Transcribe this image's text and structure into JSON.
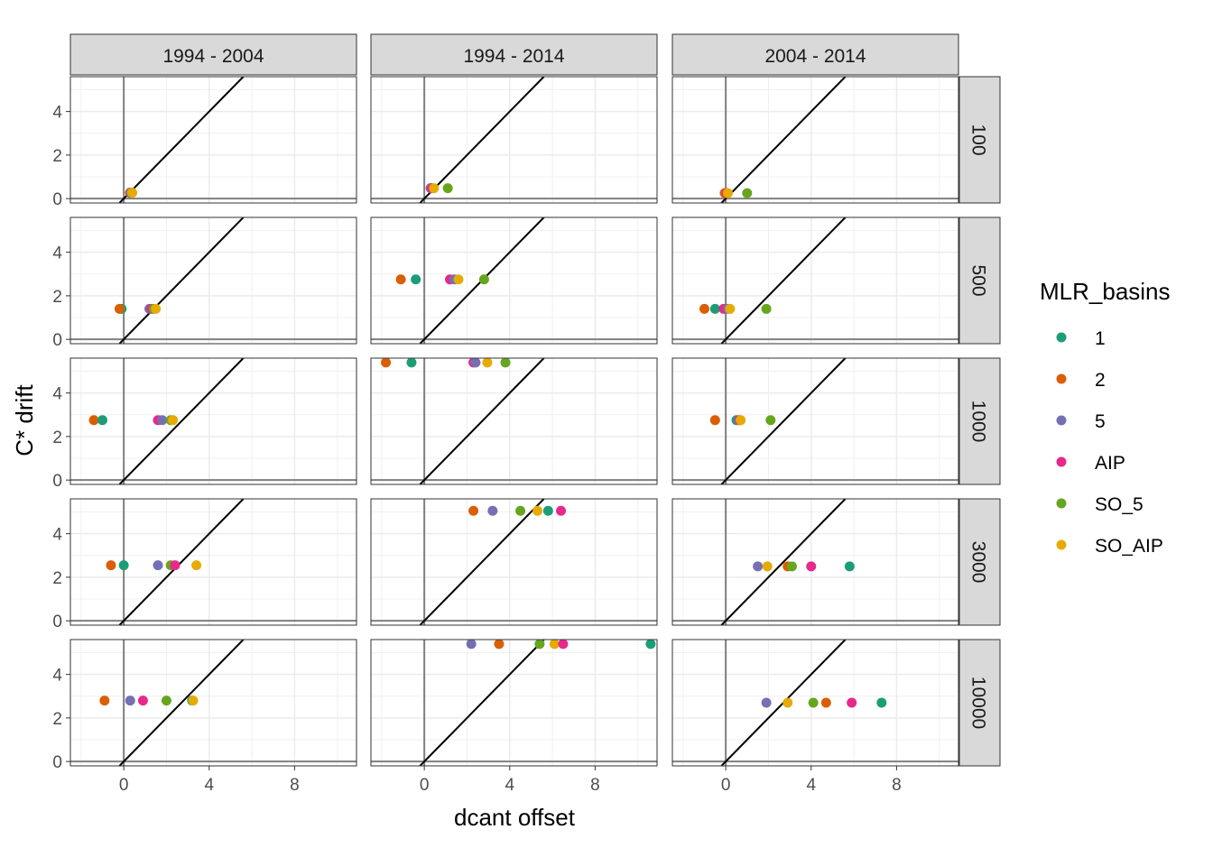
{
  "chart_data": {
    "type": "scatter",
    "xlabel": "dcant offset",
    "ylabel": "C* drift",
    "xlim": [
      -2.5,
      10.9
    ],
    "ylim": [
      -0.2,
      5.6
    ],
    "x_ticks": [
      0,
      4,
      8
    ],
    "y_ticks": [
      0,
      2,
      4
    ],
    "grid": true,
    "legend_position": "right",
    "legend_title": "MLR_basins",
    "reference_lines": [
      "x = 0",
      "y = 0",
      "y = x"
    ],
    "col_facets": [
      "1994 - 2004",
      "1994 - 2014",
      "2004 - 2014"
    ],
    "row_facets": [
      "100",
      "500",
      "1000",
      "3000",
      "10000"
    ],
    "series": [
      {
        "name": "1",
        "color": "#1B9E77"
      },
      {
        "name": "2",
        "color": "#D95F02"
      },
      {
        "name": "5",
        "color": "#7570B3"
      },
      {
        "name": "AIP",
        "color": "#E7298A"
      },
      {
        "name": "SO_5",
        "color": "#66A61E"
      },
      {
        "name": "SO_AIP",
        "color": "#E6AB02"
      }
    ],
    "panels": [
      {
        "row": "100",
        "col": "1994 - 2004",
        "y": 0.27,
        "points": [
          {
            "series": "2",
            "x": 0.3
          },
          {
            "series": "1",
            "x": 0.3
          },
          {
            "series": "5",
            "x": 0.3
          },
          {
            "series": "AIP",
            "x": 0.3
          },
          {
            "series": "SO_5",
            "x": 0.35
          },
          {
            "series": "SO_AIP",
            "x": 0.4
          }
        ]
      },
      {
        "row": "100",
        "col": "1994 - 2014",
        "y": 0.48,
        "points": [
          {
            "series": "2",
            "x": 0.3
          },
          {
            "series": "1",
            "x": 0.3
          },
          {
            "series": "5",
            "x": 0.3
          },
          {
            "series": "AIP",
            "x": 0.35
          },
          {
            "series": "SO_5",
            "x": 1.1
          },
          {
            "series": "SO_AIP",
            "x": 0.45
          }
        ]
      },
      {
        "row": "100",
        "col": "2004 - 2014",
        "y": 0.25,
        "points": [
          {
            "series": "2",
            "x": -0.05
          },
          {
            "series": "1",
            "x": 0.05
          },
          {
            "series": "5",
            "x": 0.05
          },
          {
            "series": "AIP",
            "x": 0.05
          },
          {
            "series": "SO_5",
            "x": 1.0
          },
          {
            "series": "SO_AIP",
            "x": 0.1
          }
        ]
      },
      {
        "row": "500",
        "col": "1994 - 2004",
        "y": 1.4,
        "points": [
          {
            "series": "1",
            "x": -0.1
          },
          {
            "series": "2",
            "x": -0.2
          },
          {
            "series": "5",
            "x": 1.2
          },
          {
            "series": "AIP",
            "x": 1.3
          },
          {
            "series": "SO_5",
            "x": 1.4
          },
          {
            "series": "SO_AIP",
            "x": 1.5
          }
        ]
      },
      {
        "row": "500",
        "col": "1994 - 2014",
        "y": 2.75,
        "points": [
          {
            "series": "2",
            "x": -1.1
          },
          {
            "series": "1",
            "x": -0.4
          },
          {
            "series": "AIP",
            "x": 1.2
          },
          {
            "series": "5",
            "x": 1.4
          },
          {
            "series": "SO_AIP",
            "x": 1.6
          },
          {
            "series": "SO_5",
            "x": 2.8
          }
        ]
      },
      {
        "row": "500",
        "col": "2004 - 2014",
        "y": 1.4,
        "points": [
          {
            "series": "2",
            "x": -1.0
          },
          {
            "series": "1",
            "x": -0.5
          },
          {
            "series": "AIP",
            "x": -0.1
          },
          {
            "series": "5",
            "x": 0.1
          },
          {
            "series": "SO_AIP",
            "x": 0.2
          },
          {
            "series": "SO_5",
            "x": 1.9
          }
        ]
      },
      {
        "row": "1000",
        "col": "1994 - 2004",
        "y": 2.75,
        "points": [
          {
            "series": "2",
            "x": -1.4
          },
          {
            "series": "1",
            "x": -1.0
          },
          {
            "series": "AIP",
            "x": 1.6
          },
          {
            "series": "5",
            "x": 1.8
          },
          {
            "series": "SO_5",
            "x": 2.2
          },
          {
            "series": "SO_AIP",
            "x": 2.3
          }
        ]
      },
      {
        "row": "1000",
        "col": "1994 - 2014",
        "y": 5.4,
        "points": [
          {
            "series": "2",
            "x": -1.8
          },
          {
            "series": "1",
            "x": -0.6
          },
          {
            "series": "AIP",
            "x": 2.3
          },
          {
            "series": "5",
            "x": 2.4
          },
          {
            "series": "SO_AIP",
            "x": 2.95
          },
          {
            "series": "SO_5",
            "x": 3.8
          }
        ]
      },
      {
        "row": "1000",
        "col": "2004 - 2014",
        "y": 2.75,
        "points": [
          {
            "series": "2",
            "x": -0.5
          },
          {
            "series": "1",
            "x": 0.5
          },
          {
            "series": "5",
            "x": 0.6
          },
          {
            "series": "AIP",
            "x": 0.65
          },
          {
            "series": "SO_AIP",
            "x": 0.7
          },
          {
            "series": "SO_5",
            "x": 2.1
          }
        ]
      },
      {
        "row": "3000",
        "col": "1994 - 2004",
        "y": 2.55,
        "points": [
          {
            "series": "2",
            "x": -0.6
          },
          {
            "series": "1",
            "x": 0.0
          },
          {
            "series": "5",
            "x": 1.6
          },
          {
            "series": "SO_5",
            "x": 2.2
          },
          {
            "series": "AIP",
            "x": 2.4
          },
          {
            "series": "SO_AIP",
            "x": 3.4
          }
        ]
      },
      {
        "row": "3000",
        "col": "1994 - 2014",
        "y": 5.05,
        "points": [
          {
            "series": "2",
            "x": 2.3
          },
          {
            "series": "5",
            "x": 3.2
          },
          {
            "series": "SO_5",
            "x": 4.5
          },
          {
            "series": "SO_AIP",
            "x": 5.3
          },
          {
            "series": "1",
            "x": 5.8
          },
          {
            "series": "AIP",
            "x": 6.4
          }
        ]
      },
      {
        "row": "3000",
        "col": "2004 - 2014",
        "y": 2.5,
        "points": [
          {
            "series": "5",
            "x": 1.5
          },
          {
            "series": "SO_AIP",
            "x": 1.95
          },
          {
            "series": "2",
            "x": 2.9
          },
          {
            "series": "SO_5",
            "x": 3.1
          },
          {
            "series": "AIP",
            "x": 4.0
          },
          {
            "series": "1",
            "x": 5.8
          }
        ]
      },
      {
        "row": "10000",
        "col": "1994 - 2004",
        "y": 2.8,
        "points": [
          {
            "series": "2",
            "x": -0.9
          },
          {
            "series": "5",
            "x": 0.3
          },
          {
            "series": "AIP",
            "x": 0.9
          },
          {
            "series": "SO_5",
            "x": 2.0
          },
          {
            "series": "1",
            "x": 3.2
          },
          {
            "series": "SO_AIP",
            "x": 3.25
          }
        ]
      },
      {
        "row": "10000",
        "col": "1994 - 2014",
        "y": 5.4,
        "points": [
          {
            "series": "5",
            "x": 2.2
          },
          {
            "series": "2",
            "x": 3.5
          },
          {
            "series": "SO_5",
            "x": 5.4
          },
          {
            "series": "SO_AIP",
            "x": 6.1
          },
          {
            "series": "AIP",
            "x": 6.5
          },
          {
            "series": "1",
            "x": 10.6
          }
        ]
      },
      {
        "row": "10000",
        "col": "2004 - 2014",
        "y": 2.7,
        "points": [
          {
            "series": "5",
            "x": 1.9
          },
          {
            "series": "SO_AIP",
            "x": 2.9
          },
          {
            "series": "SO_5",
            "x": 4.1
          },
          {
            "series": "2",
            "x": 4.7
          },
          {
            "series": "AIP",
            "x": 5.9
          },
          {
            "series": "1",
            "x": 7.3
          }
        ]
      }
    ]
  }
}
